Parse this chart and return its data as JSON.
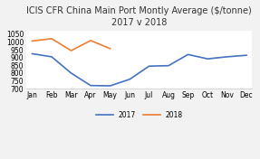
{
  "title": "ICIS CFR China Main Port Montly Average ($/tonne)\n2017 v 2018",
  "months": [
    "Jan",
    "Feb",
    "Mar",
    "Apr",
    "May",
    "Jun",
    "Jul",
    "Aug",
    "Sep",
    "Oct",
    "Nov",
    "Dec"
  ],
  "data_2017": [
    925,
    905,
    800,
    720,
    718,
    760,
    845,
    848,
    920,
    892,
    905,
    915
  ],
  "data_2018": [
    1007,
    1022,
    945,
    1010,
    958,
    null,
    null,
    null,
    null,
    null,
    null,
    null
  ],
  "color_2017": "#4472C4",
  "color_2018": "#ED7D31",
  "ylim": [
    700,
    1075
  ],
  "yticks": [
    700,
    750,
    800,
    850,
    900,
    950,
    1000,
    1050
  ],
  "bg_color": "#F2F2F2",
  "plot_bg_color": "#FFFFFF",
  "grid_color": "#FFFFFF",
  "legend_labels": [
    "2017",
    "2018"
  ],
  "title_fontsize": 7,
  "tick_fontsize": 5.5
}
